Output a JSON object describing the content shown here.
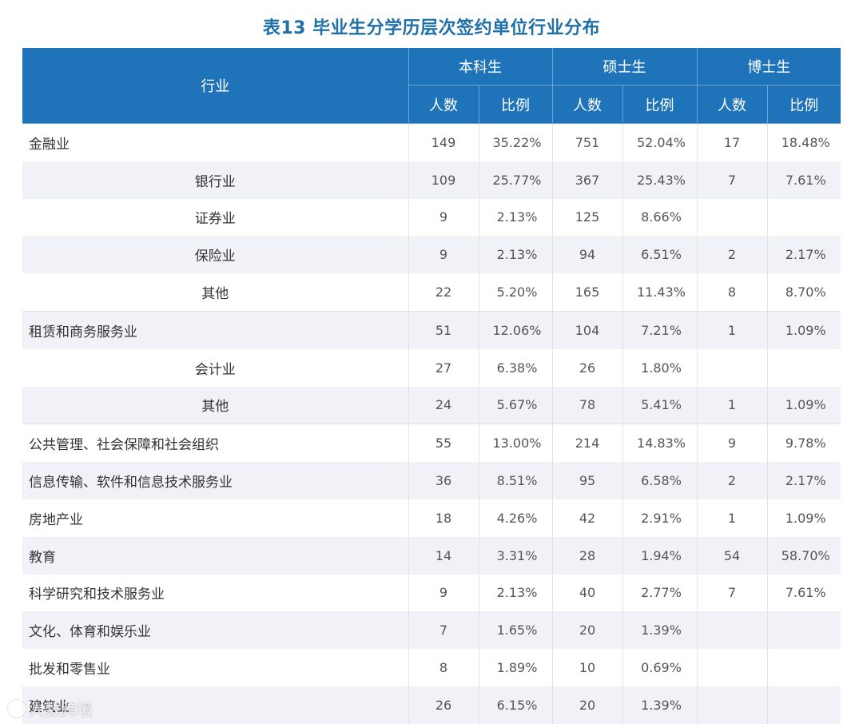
{
  "title": "表13  毕业生分学历层次签约单位行业分布",
  "header": {
    "industry": "行业",
    "groups": [
      "本科生",
      "硕士生",
      "博士生"
    ],
    "count_label": "人数",
    "ratio_label": "比例"
  },
  "rows": [
    {
      "industry": "金融业",
      "sub": false,
      "group_top": false,
      "ug_n": "149",
      "ug_p": "35.22%",
      "ms_n": "751",
      "ms_p": "52.04%",
      "phd_n": "17",
      "phd_p": "18.48%"
    },
    {
      "industry": "银行业",
      "sub": true,
      "group_top": false,
      "ug_n": "109",
      "ug_p": "25.77%",
      "ms_n": "367",
      "ms_p": "25.43%",
      "phd_n": "7",
      "phd_p": "7.61%"
    },
    {
      "industry": "证券业",
      "sub": true,
      "group_top": false,
      "ug_n": "9",
      "ug_p": "2.13%",
      "ms_n": "125",
      "ms_p": "8.66%",
      "phd_n": "",
      "phd_p": ""
    },
    {
      "industry": "保险业",
      "sub": true,
      "group_top": false,
      "ug_n": "9",
      "ug_p": "2.13%",
      "ms_n": "94",
      "ms_p": "6.51%",
      "phd_n": "2",
      "phd_p": "2.17%"
    },
    {
      "industry": "其他",
      "sub": true,
      "group_top": false,
      "ug_n": "22",
      "ug_p": "5.20%",
      "ms_n": "165",
      "ms_p": "11.43%",
      "phd_n": "8",
      "phd_p": "8.70%"
    },
    {
      "industry": "租赁和商务服务业",
      "sub": false,
      "group_top": true,
      "ug_n": "51",
      "ug_p": "12.06%",
      "ms_n": "104",
      "ms_p": "7.21%",
      "phd_n": "1",
      "phd_p": "1.09%"
    },
    {
      "industry": "会计业",
      "sub": true,
      "group_top": false,
      "ug_n": "27",
      "ug_p": "6.38%",
      "ms_n": "26",
      "ms_p": "1.80%",
      "phd_n": "",
      "phd_p": ""
    },
    {
      "industry": "其他",
      "sub": true,
      "group_top": false,
      "ug_n": "24",
      "ug_p": "5.67%",
      "ms_n": "78",
      "ms_p": "5.41%",
      "phd_n": "1",
      "phd_p": "1.09%"
    },
    {
      "industry": "公共管理、社会保障和社会组织",
      "sub": false,
      "group_top": true,
      "ug_n": "55",
      "ug_p": "13.00%",
      "ms_n": "214",
      "ms_p": "14.83%",
      "phd_n": "9",
      "phd_p": "9.78%"
    },
    {
      "industry": "信息传输、软件和信息技术服务业",
      "sub": false,
      "group_top": false,
      "ug_n": "36",
      "ug_p": "8.51%",
      "ms_n": "95",
      "ms_p": "6.58%",
      "phd_n": "2",
      "phd_p": "2.17%"
    },
    {
      "industry": "房地产业",
      "sub": false,
      "group_top": false,
      "ug_n": "18",
      "ug_p": "4.26%",
      "ms_n": "42",
      "ms_p": "2.91%",
      "phd_n": "1",
      "phd_p": "1.09%"
    },
    {
      "industry": "教育",
      "sub": false,
      "group_top": false,
      "ug_n": "14",
      "ug_p": "3.31%",
      "ms_n": "28",
      "ms_p": "1.94%",
      "phd_n": "54",
      "phd_p": "58.70%"
    },
    {
      "industry": "科学研究和技术服务业",
      "sub": false,
      "group_top": false,
      "ug_n": "9",
      "ug_p": "2.13%",
      "ms_n": "40",
      "ms_p": "2.77%",
      "phd_n": "7",
      "phd_p": "7.61%"
    },
    {
      "industry": "文化、体育和娱乐业",
      "sub": false,
      "group_top": false,
      "ug_n": "7",
      "ug_p": "1.65%",
      "ms_n": "20",
      "ms_p": "1.39%",
      "phd_n": "",
      "phd_p": ""
    },
    {
      "industry": "批发和零售业",
      "sub": false,
      "group_top": false,
      "ug_n": "8",
      "ug_p": "1.89%",
      "ms_n": "10",
      "ms_p": "0.69%",
      "phd_n": "",
      "phd_p": ""
    },
    {
      "industry": "建筑业",
      "sub": false,
      "group_top": false,
      "ug_n": "26",
      "ug_p": "6.15%",
      "ms_n": "20",
      "ms_p": "1.39%",
      "phd_n": "",
      "phd_p": ""
    }
  ],
  "watermark": "人数跨境"
}
